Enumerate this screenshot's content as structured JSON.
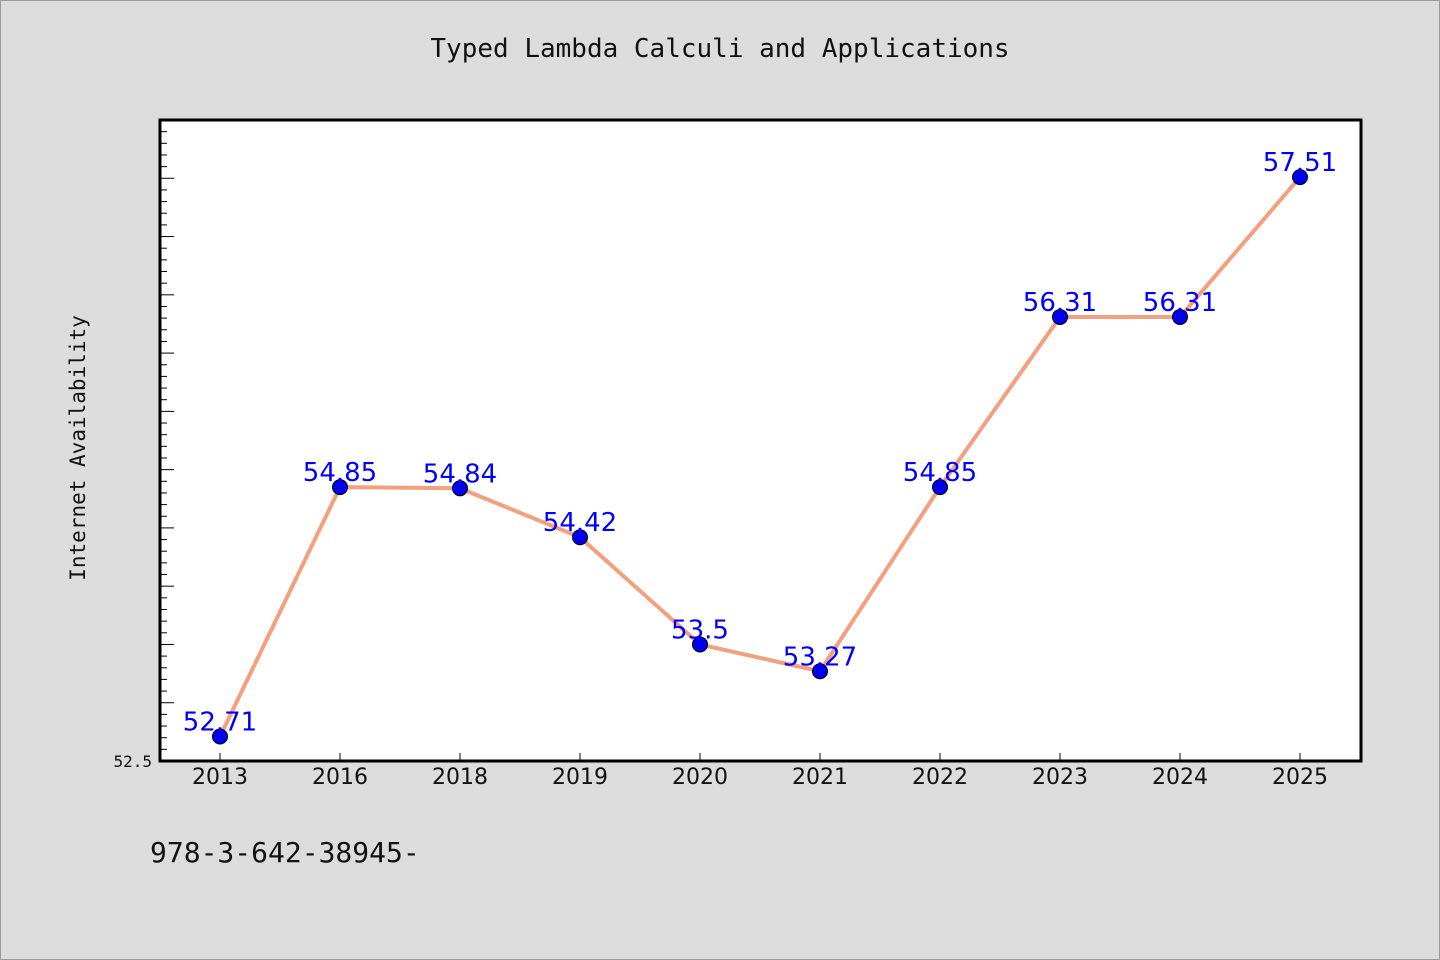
{
  "chart_data": {
    "type": "line",
    "title": "Typed Lambda Calculi and Applications",
    "xlabel": "",
    "ylabel": "Internet Availability",
    "categories": [
      "2013",
      "2016",
      "2018",
      "2019",
      "2020",
      "2021",
      "2022",
      "2023",
      "2024",
      "2025"
    ],
    "values": [
      52.71,
      54.85,
      54.84,
      54.42,
      53.5,
      53.27,
      54.85,
      56.31,
      56.31,
      57.51
    ],
    "data_labels": [
      "52.71",
      "54.85",
      "54.84",
      "54.42",
      "53.5",
      "53.27",
      "54.85",
      "56.31",
      "56.31",
      "57.51"
    ],
    "ylim": [
      52.5,
      58.0
    ],
    "y_tick_labels": [
      "52.5"
    ],
    "grid": false,
    "line_color": "#f4a07f",
    "marker_color": "#0000ee",
    "label_color": "#0000ff"
  },
  "footer_note": "978-3-642-38945-"
}
